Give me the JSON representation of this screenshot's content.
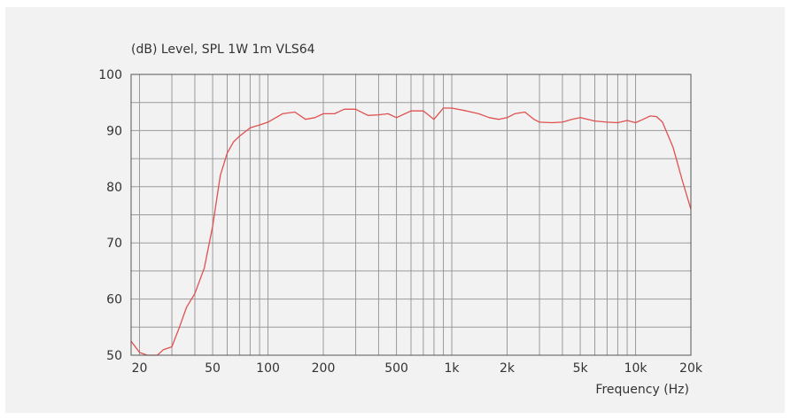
{
  "chart_data": {
    "type": "line",
    "title": "(dB)  Level, SPL 1W 1m VLS64",
    "xlabel": "Frequency  (Hz)",
    "ylabel": "",
    "x_scale": "log",
    "xlim": [
      18,
      20000
    ],
    "ylim": [
      50,
      100
    ],
    "grid": true,
    "y_ticks": [
      50,
      60,
      70,
      80,
      90,
      100
    ],
    "x_ticks": [
      {
        "value": 20,
        "label": "20"
      },
      {
        "value": 50,
        "label": "50"
      },
      {
        "value": 100,
        "label": "100"
      },
      {
        "value": 200,
        "label": "200"
      },
      {
        "value": 500,
        "label": "500"
      },
      {
        "value": 1000,
        "label": "1k"
      },
      {
        "value": 2000,
        "label": "2k"
      },
      {
        "value": 5000,
        "label": "5k"
      },
      {
        "value": 10000,
        "label": "10k"
      },
      {
        "value": 20000,
        "label": "20k"
      }
    ],
    "series": [
      {
        "color": "#e05050",
        "x": [
          18,
          20,
          22,
          25,
          27,
          30,
          33,
          36,
          40,
          45,
          50,
          55,
          60,
          65,
          70,
          80,
          90,
          100,
          120,
          140,
          160,
          180,
          200,
          230,
          260,
          300,
          350,
          400,
          450,
          500,
          600,
          700,
          800,
          900,
          1000,
          1200,
          1400,
          1600,
          1800,
          2000,
          2200,
          2500,
          2800,
          3000,
          3500,
          4000,
          4500,
          5000,
          5500,
          6000,
          7000,
          8000,
          9000,
          10000,
          11000,
          12000,
          13000,
          14000,
          16000,
          18000,
          20000
        ],
        "y": [
          52.5,
          50.5,
          50,
          50,
          51,
          51.5,
          55,
          58.5,
          61,
          65.5,
          73,
          82,
          86,
          88,
          89,
          90.5,
          91,
          91.5,
          93,
          93.3,
          92,
          92.3,
          93,
          93,
          93.8,
          93.8,
          92.7,
          92.8,
          93,
          92.3,
          93.5,
          93.5,
          92,
          94,
          94,
          93.5,
          93,
          92.3,
          92,
          92.3,
          93,
          93.3,
          92,
          91.5,
          91.4,
          91.5,
          92,
          92.3,
          92,
          91.7,
          91.5,
          91.4,
          91.8,
          91.4,
          92,
          92.6,
          92.5,
          91.5,
          87,
          81,
          76
        ]
      }
    ]
  }
}
